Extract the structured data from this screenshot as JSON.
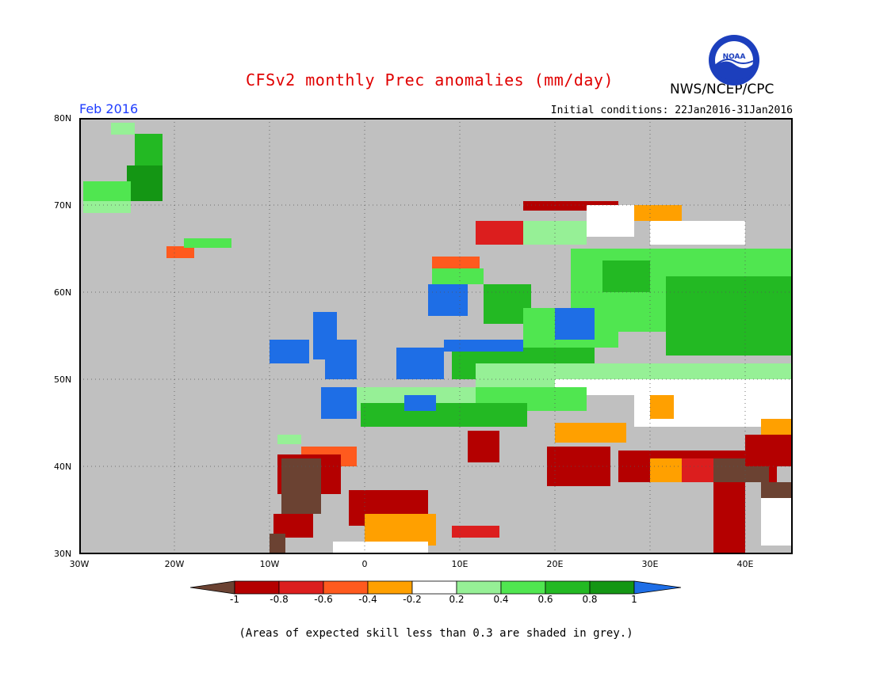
{
  "header": {
    "title": "CFSv2 monthly Prec anomalies (mm/day)",
    "agency": "NWS/NCEP/CPC",
    "logo_text": "NOAA",
    "month": "Feb 2016",
    "initial_conditions": "Initial conditions: 22Jan2016-31Jan2016"
  },
  "map": {
    "lat_labels": [
      "80N",
      "70N",
      "60N",
      "50N",
      "40N",
      "30N"
    ],
    "lon_labels": [
      "30W",
      "20W",
      "10W",
      "0",
      "10E",
      "20E",
      "30E",
      "40E"
    ],
    "background": "#c0c0c0"
  },
  "colorbar": {
    "labels": [
      "-1",
      "-0.8",
      "-0.6",
      "-0.4",
      "-0.2",
      "0.2",
      "0.4",
      "0.6",
      "0.8",
      "1"
    ],
    "colors": [
      "#6b4232",
      "#b40000",
      "#dc1e1e",
      "#ff5a1e",
      "#ffa000",
      "#ffffff",
      "#96f096",
      "#50e650",
      "#23b923",
      "#149614",
      "#1e6ee6"
    ]
  },
  "footnote": "(Areas of expected skill less than 0.3 are shaded in grey.)"
}
